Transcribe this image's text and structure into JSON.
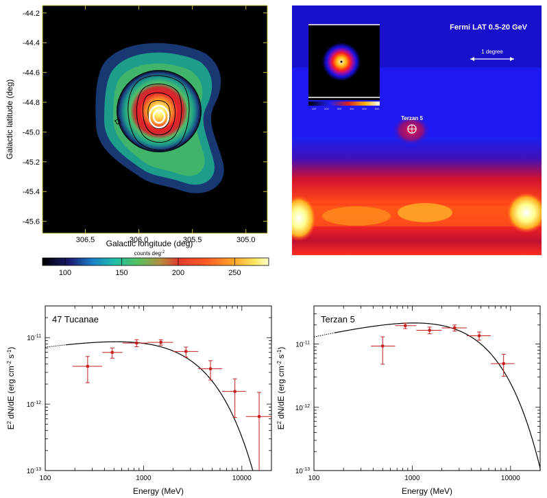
{
  "chart_data": [
    {
      "type": "heatmap",
      "panel": "top-left",
      "xlabel": "Galactic longitude (deg)",
      "ylabel": "Galactic latitude (deg)",
      "xticks": [
        "306.5",
        "306.0",
        "305.5",
        "305.0"
      ],
      "xtick_values": [
        306.5,
        306.0,
        305.5,
        305.0
      ],
      "xlim": [
        306.9,
        304.8
      ],
      "yticks": [
        "-44.2",
        "-44.4",
        "-44.6",
        "-44.8",
        "-45.0",
        "-45.2",
        "-45.4",
        "-45.6"
      ],
      "ytick_values": [
        -44.2,
        -44.4,
        -44.6,
        -44.8,
        -45.0,
        -45.2,
        -45.4,
        -45.6
      ],
      "ylim": [
        -45.68,
        -44.15
      ],
      "colorbar_label": "counts deg",
      "colorbar_label_sup": "-2",
      "colorbar_ticks": [
        "100",
        "150",
        "200",
        "250"
      ],
      "colorbar_tick_values": [
        100,
        150,
        200,
        250
      ],
      "colorbar_range": [
        80,
        280
      ]
    },
    {
      "type": "heatmap",
      "panel": "top-right",
      "title": "Fermi LAT  0.5-20 GeV",
      "scale_label": "1 degree",
      "source_label": "Terzan 5",
      "inset_ticks": [
        "100",
        "200",
        "300",
        "400",
        "500",
        "600"
      ]
    },
    {
      "type": "scatter",
      "panel": "bottom-left",
      "title": "47 Tucanae",
      "xlabel": "Energy (MeV)",
      "ylabel_pre": "E",
      "ylabel_sup": "2",
      "ylabel_mid": " dN/dE (erg cm",
      "ylabel_sup2": "-2",
      "ylabel_mid2": " s",
      "ylabel_sup3": "-1",
      "ylabel_end": ")",
      "xscale": "log",
      "yscale": "log",
      "xlim": [
        100,
        20000
      ],
      "ylim": [
        1e-13,
        3e-11
      ],
      "xticks": [
        "100",
        "1000",
        "10000"
      ],
      "xtick_values": [
        100,
        1000,
        10000
      ],
      "yticks": [
        {
          "base": "10",
          "exp": "-11",
          "value": 1e-11
        },
        {
          "base": "10",
          "exp": "-12",
          "value": 1e-12
        },
        {
          "base": "10",
          "exp": "-13",
          "value": 1e-13
        }
      ],
      "points": [
        {
          "x": 270,
          "y": 3.7e-12,
          "xlo": 190,
          "xhi": 380,
          "ylo": 2.1e-12,
          "yhi": 5.2e-12
        },
        {
          "x": 480,
          "y": 6e-12,
          "xlo": 380,
          "xhi": 610,
          "ylo": 4.9e-12,
          "yhi": 7e-12
        },
        {
          "x": 850,
          "y": 8.3e-12,
          "xlo": 610,
          "xhi": 1100,
          "ylo": 7.3e-12,
          "yhi": 9.3e-12
        },
        {
          "x": 1500,
          "y": 8.5e-12,
          "xlo": 1100,
          "xhi": 2000,
          "ylo": 7.7e-12,
          "yhi": 9.3e-12
        },
        {
          "x": 2700,
          "y": 6.2e-12,
          "xlo": 2000,
          "xhi": 3600,
          "ylo": 5.1e-12,
          "yhi": 7.2e-12
        },
        {
          "x": 4800,
          "y": 3.4e-12,
          "xlo": 3600,
          "xhi": 6300,
          "ylo": 2.3e-12,
          "yhi": 4.5e-12
        },
        {
          "x": 8500,
          "y": 1.55e-12,
          "xlo": 6300,
          "xhi": 11000,
          "ylo": 6.3e-13,
          "yhi": 2.4e-12
        },
        {
          "x": 15000,
          "y": 6.5e-13,
          "xlo": 11000,
          "xhi": 20000,
          "ylo": 1e-13,
          "yhi": 1.5e-12
        }
      ],
      "model": {
        "norm": 8.2e-12,
        "index": 0.22,
        "pivot": 1000,
        "cutoff": 2400,
        "dashed_below": 160
      }
    },
    {
      "type": "scatter",
      "panel": "bottom-right",
      "title": "Terzan 5",
      "xlabel": "Energy (MeV)",
      "ylabel_pre": "E",
      "ylabel_sup": "2",
      "ylabel_mid": " dN/dE (erg cm",
      "ylabel_sup2": "-2",
      "ylabel_mid2": " s",
      "ylabel_sup3": "-1",
      "ylabel_end": ")",
      "xscale": "log",
      "yscale": "log",
      "xlim": [
        100,
        20000
      ],
      "ylim": [
        1e-13,
        4e-11
      ],
      "xticks": [
        "100",
        "1000",
        "10000"
      ],
      "xtick_values": [
        100,
        1000,
        10000
      ],
      "yticks": [
        {
          "base": "10",
          "exp": "-11",
          "value": 1e-11
        },
        {
          "base": "10",
          "exp": "-12",
          "value": 1e-12
        },
        {
          "base": "10",
          "exp": "-13",
          "value": 1e-13
        }
      ],
      "points": [
        {
          "x": 500,
          "y": 9.3e-12,
          "xlo": 380,
          "xhi": 670,
          "ylo": 4.8e-12,
          "yhi": 1.3e-11
        },
        {
          "x": 850,
          "y": 1.95e-11,
          "xlo": 670,
          "xhi": 1100,
          "ylo": 1.75e-11,
          "yhi": 2.15e-11
        },
        {
          "x": 1500,
          "y": 1.65e-11,
          "xlo": 1100,
          "xhi": 2000,
          "ylo": 1.45e-11,
          "yhi": 1.85e-11
        },
        {
          "x": 2700,
          "y": 1.8e-11,
          "xlo": 2000,
          "xhi": 3600,
          "ylo": 1.6e-11,
          "yhi": 2e-11
        },
        {
          "x": 4800,
          "y": 1.35e-11,
          "xlo": 3600,
          "xhi": 6300,
          "ylo": 1.15e-11,
          "yhi": 1.55e-11
        },
        {
          "x": 8500,
          "y": 4.9e-12,
          "xlo": 6300,
          "xhi": 11000,
          "ylo": 3.1e-12,
          "yhi": 6.9e-12
        }
      ],
      "model": {
        "norm": 2.15e-11,
        "index": 0.35,
        "pivot": 1000,
        "cutoff": 3000,
        "dashed_below": 160
      }
    }
  ]
}
